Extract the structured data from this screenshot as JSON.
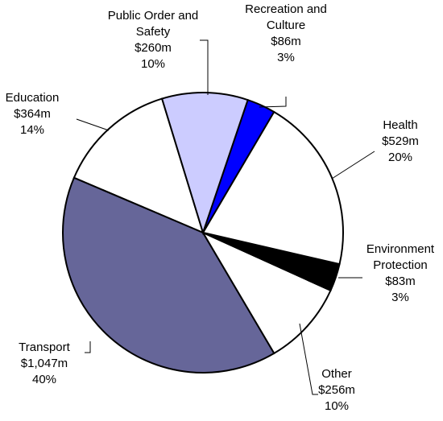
{
  "chart_data": {
    "type": "pie",
    "categories": [
      "Public Order and Safety",
      "Recreation and Culture",
      "Health",
      "Environment Protection",
      "Other",
      "Transport",
      "Education"
    ],
    "values": [
      260,
      86,
      529,
      83,
      256,
      1047,
      364
    ],
    "value_labels": [
      "$260m",
      "$86m",
      "$529m",
      "$83m",
      "$256m",
      "$1,047m",
      "$364m"
    ],
    "percent_values": [
      10,
      3,
      20,
      3,
      10,
      40,
      14
    ],
    "percent_labels": [
      "10%",
      "3%",
      "20%",
      "3%",
      "10%",
      "40%",
      "14%"
    ],
    "colors": [
      "#ccccff",
      "#0000ff",
      "#ffffff",
      "#000000",
      "#ffffff",
      "#666699",
      "#ffffff"
    ]
  }
}
